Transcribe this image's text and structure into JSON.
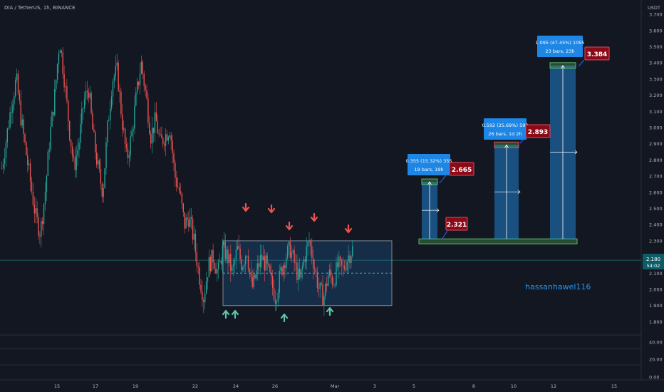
{
  "header": {
    "symbol_label": "DIA / TetherUS, 1h, BINANCE"
  },
  "axes": {
    "currency_label": "USDT",
    "price_ticks": [
      "3.700",
      "3.600",
      "3.500",
      "3.400",
      "3.300",
      "3.200",
      "3.100",
      "3.000",
      "2.900",
      "2.800",
      "2.700",
      "2.600",
      "2.500",
      "2.400",
      "2.300",
      "2.100",
      "2.000",
      "1.900",
      "1.800"
    ],
    "volume_ticks": [
      "40.00",
      "20.00",
      "0.00"
    ],
    "date_ticks": [
      "15",
      "17",
      "19",
      "22",
      "24",
      "26",
      "Mar",
      "3",
      "5",
      "8",
      "10",
      "12",
      "15"
    ]
  },
  "current_price": {
    "price": "2.180",
    "countdown": "54:02",
    "value": 2.18
  },
  "annotations": {
    "author": "hassanhawel116",
    "base_price": "2.321",
    "targets": [
      {
        "stats": "0.355 (15.32%) 355",
        "duration": "19 bars, 19h",
        "target": "2.665",
        "value": 2.665
      },
      {
        "stats": "0.592 (25.69%) 592",
        "duration": "26 bars, 1d 2h",
        "target": "2.893",
        "value": 2.893
      },
      {
        "stats": "1.095 (47.45%) 1095",
        "duration": "23 bars, 23h",
        "target": "3.384",
        "value": 3.384
      }
    ]
  },
  "range_box": {
    "top": 2.3,
    "bottom": 1.9,
    "mid": 2.1
  },
  "chart_data": {
    "type": "candlestick",
    "ylim": [
      1.75,
      3.8
    ],
    "xlabel": "",
    "ylabel": "",
    "x_labels": [
      "15",
      "17",
      "19",
      "22",
      "24",
      "26",
      "Mar",
      "3",
      "5",
      "8",
      "10",
      "12",
      "15"
    ],
    "series": [
      {
        "close": [
          2.75,
          2.95,
          3.15,
          3.3,
          3.05,
          2.85,
          2.65,
          2.45,
          2.35,
          2.6,
          2.95,
          3.2,
          3.55,
          3.3,
          3.0,
          2.75,
          2.9,
          3.15,
          3.25,
          2.95,
          2.75,
          2.6,
          3.0,
          3.3,
          3.35,
          3.05,
          2.8,
          2.95,
          3.2,
          3.4,
          3.2,
          2.95,
          3.05,
          2.9,
          2.95,
          3.0,
          2.7,
          2.6,
          2.4,
          2.45,
          2.3,
          2.1,
          1.95,
          2.15,
          2.2,
          2.1,
          2.25,
          2.2,
          2.1,
          2.25,
          2.15,
          2.25,
          2.0,
          2.1,
          2.2,
          2.15,
          2.05,
          1.95,
          2.1,
          2.2,
          2.25,
          2.15,
          2.05,
          2.2,
          2.3,
          2.15,
          2.0,
          1.95,
          2.1,
          2.05,
          2.15,
          2.12,
          2.2,
          2.25
        ]
      }
    ]
  }
}
